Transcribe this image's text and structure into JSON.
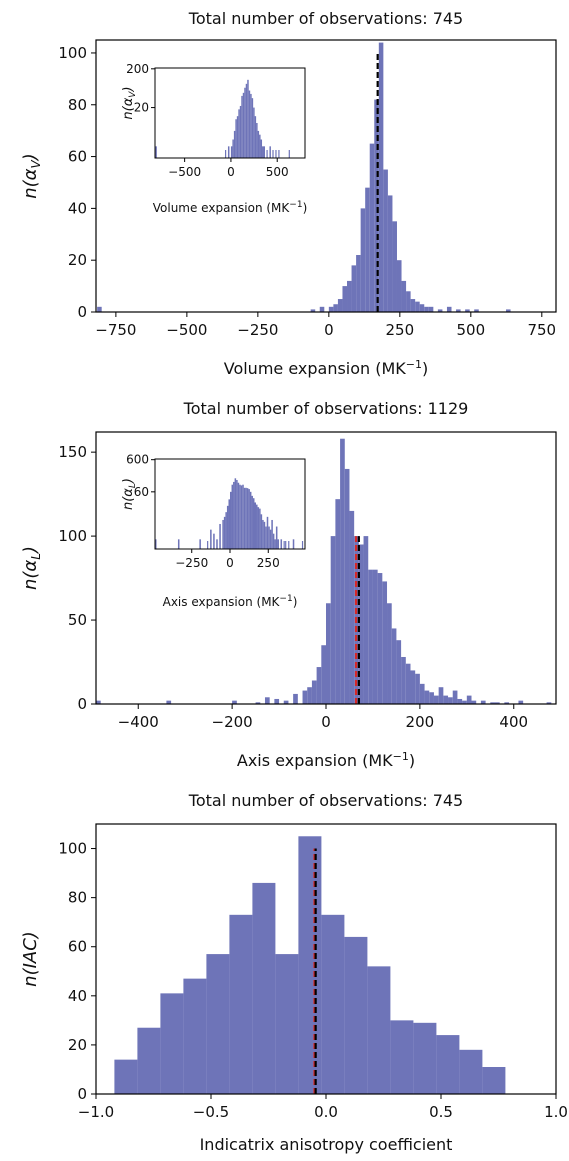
{
  "chart_data": [
    {
      "type": "bar",
      "title": "Total number of observations: 745",
      "xlabel": "Volume expansion (MK",
      "xlabel_sup": "−1",
      "xlabel_close": ")",
      "ylabel_base": "n(α",
      "ylabel_sub": "V",
      "ylabel_close": ")",
      "xlim": [
        -820,
        800
      ],
      "ylim": [
        0,
        105
      ],
      "xticks": [
        -750,
        -500,
        -250,
        0,
        250,
        500,
        750
      ],
      "yticks": [
        0,
        20,
        40,
        60,
        80,
        100
      ],
      "bin_width": 16,
      "bar_color": "#6e74b8",
      "markers": [
        {
          "x": 172,
          "color": "#000000",
          "height": 100
        }
      ],
      "bins": [
        [
          -816,
          2
        ],
        [
          -64,
          1
        ],
        [
          -32,
          2
        ],
        [
          0,
          2
        ],
        [
          16,
          3
        ],
        [
          32,
          5
        ],
        [
          48,
          10
        ],
        [
          64,
          12
        ],
        [
          80,
          18
        ],
        [
          96,
          22
        ],
        [
          112,
          40
        ],
        [
          128,
          48
        ],
        [
          144,
          65
        ],
        [
          160,
          82
        ],
        [
          176,
          104
        ],
        [
          192,
          55
        ],
        [
          208,
          45
        ],
        [
          224,
          35
        ],
        [
          240,
          20
        ],
        [
          256,
          12
        ],
        [
          272,
          8
        ],
        [
          288,
          5
        ],
        [
          304,
          4
        ],
        [
          320,
          3
        ],
        [
          336,
          2
        ],
        [
          352,
          2
        ],
        [
          384,
          1
        ],
        [
          416,
          2
        ],
        [
          448,
          1
        ],
        [
          480,
          1
        ],
        [
          512,
          1
        ],
        [
          624,
          1
        ]
      ],
      "inset": {
        "xlabel": "Volume expansion (MK",
        "xlabel_sup": "−1",
        "xlabel_close": ")",
        "ylabel_base": "n(α",
        "ylabel_sub": "V",
        "ylabel_close": ")",
        "xticks": [
          -500,
          0,
          500
        ],
        "yticks": [
          20,
          200
        ],
        "xlim": [
          -820,
          800
        ],
        "y_scale": "log"
      }
    },
    {
      "type": "bar",
      "title": "Total number of observations: 1129",
      "xlabel": "Axis expansion (MK",
      "xlabel_sup": "−1",
      "xlabel_close": ")",
      "ylabel_base": "n(α",
      "ylabel_sub": "L",
      "ylabel_close": ")",
      "xlim": [
        -490,
        490
      ],
      "ylim": [
        0,
        162
      ],
      "xticks": [
        -400,
        -200,
        0,
        200,
        400
      ],
      "yticks": [
        0,
        50,
        100,
        150
      ],
      "bin_width": 10,
      "bar_color": "#6e74b8",
      "markers": [
        {
          "x": 64,
          "color": "#d62728",
          "height": 100
        },
        {
          "x": 70,
          "color": "#000000",
          "height": 100
        }
      ],
      "bins": [
        [
          -490,
          2
        ],
        [
          -340,
          2
        ],
        [
          -200,
          2
        ],
        [
          -150,
          1
        ],
        [
          -130,
          4
        ],
        [
          -110,
          3
        ],
        [
          -90,
          2
        ],
        [
          -70,
          6
        ],
        [
          -50,
          8
        ],
        [
          -40,
          10
        ],
        [
          -30,
          14
        ],
        [
          -20,
          22
        ],
        [
          -10,
          35
        ],
        [
          0,
          60
        ],
        [
          10,
          100
        ],
        [
          20,
          122
        ],
        [
          30,
          158
        ],
        [
          40,
          140
        ],
        [
          50,
          115
        ],
        [
          60,
          100
        ],
        [
          70,
          95
        ],
        [
          80,
          100
        ],
        [
          90,
          80
        ],
        [
          100,
          80
        ],
        [
          110,
          78
        ],
        [
          120,
          73
        ],
        [
          130,
          60
        ],
        [
          140,
          45
        ],
        [
          150,
          38
        ],
        [
          160,
          28
        ],
        [
          170,
          24
        ],
        [
          180,
          20
        ],
        [
          190,
          18
        ],
        [
          200,
          12
        ],
        [
          210,
          8
        ],
        [
          220,
          7
        ],
        [
          230,
          5
        ],
        [
          240,
          10
        ],
        [
          250,
          5
        ],
        [
          260,
          4
        ],
        [
          270,
          8
        ],
        [
          280,
          3
        ],
        [
          290,
          2
        ],
        [
          300,
          5
        ],
        [
          310,
          2
        ],
        [
          330,
          2
        ],
        [
          350,
          1
        ],
        [
          360,
          1
        ],
        [
          380,
          1
        ],
        [
          410,
          2
        ],
        [
          470,
          1
        ]
      ],
      "inset": {
        "xlabel": "Axis expansion (MK",
        "xlabel_sup": "−1",
        "xlabel_close": ")",
        "ylabel_base": "n(α",
        "ylabel_sub": "L",
        "ylabel_close": ")",
        "xticks": [
          -250,
          0,
          250
        ],
        "yticks": [
          60,
          600
        ],
        "xlim": [
          -490,
          490
        ],
        "y_scale": "log"
      }
    },
    {
      "type": "bar",
      "title": "Total number of observations: 745",
      "xlabel": "Indicatrix anisotropy coefficient",
      "xlabel_sup": "",
      "xlabel_close": "",
      "ylabel_base": "n(IAC)",
      "ylabel_sub": "",
      "ylabel_close": "",
      "xlim": [
        -1.0,
        1.0
      ],
      "ylim": [
        0,
        110
      ],
      "xticks": [
        -1.0,
        -0.5,
        0.0,
        0.5,
        1.0
      ],
      "xtick_labels": [
        "−1.0",
        "−0.5",
        "0.0",
        "0.5",
        "1.0"
      ],
      "yticks": [
        0,
        20,
        40,
        60,
        80,
        100
      ],
      "bin_width": 0.1,
      "bar_color": "#6e74b8",
      "markers": [
        {
          "x": -0.05,
          "color": "#d62728",
          "height": 100
        },
        {
          "x": -0.045,
          "color": "#000000",
          "height": 100
        }
      ],
      "bins": [
        [
          -0.92,
          14
        ],
        [
          -0.82,
          27
        ],
        [
          -0.72,
          41
        ],
        [
          -0.62,
          47
        ],
        [
          -0.52,
          57
        ],
        [
          -0.42,
          73
        ],
        [
          -0.32,
          86
        ],
        [
          -0.22,
          57
        ],
        [
          -0.12,
          105
        ],
        [
          -0.02,
          73
        ],
        [
          0.08,
          64
        ],
        [
          0.18,
          52
        ],
        [
          0.28,
          30
        ],
        [
          0.38,
          29
        ],
        [
          0.48,
          24
        ],
        [
          0.58,
          18
        ],
        [
          0.68,
          11
        ]
      ]
    }
  ]
}
